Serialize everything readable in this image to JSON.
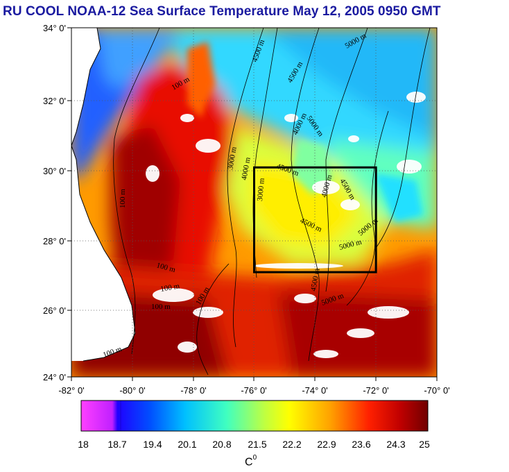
{
  "title": "RU COOL  NOAA-12 Sea Surface Temperature May 12, 2005 0950 GMT",
  "map": {
    "lat_labels": [
      "34° 0'",
      "32° 0'",
      "30° 0'",
      "28° 0'",
      "26° 0'",
      "24° 0'"
    ],
    "lon_labels": [
      "-82° 0'",
      "-80° 0'",
      "-78° 0'",
      "-76° 0'",
      "-74° 0'",
      "-72° 0'",
      "-70° 0'"
    ],
    "lat_range": [
      24,
      34
    ],
    "lon_range": [
      -82,
      -70
    ],
    "study_box": {
      "lon": [
        -76,
        -72
      ],
      "lat": [
        27,
        30
      ]
    },
    "contour_labels": [
      "100 m",
      "100 m",
      "3000 m",
      "4500 m",
      "5000 m",
      "4500 m",
      "4000 m",
      "5000 m",
      "4000 m",
      "3000 m",
      "4500 m",
      "4000 m",
      "4500 m",
      "4500 m",
      "5000 m",
      "5000 m",
      "4500 m",
      "5000 m",
      "100 m",
      "100 m",
      "100 m",
      "100 m",
      "100 m"
    ]
  },
  "colorbar": {
    "unit": "C",
    "unit_sup": "0",
    "ticks": [
      "18",
      "18.7",
      "19.4",
      "20.1",
      "20.8",
      "21.5",
      "22.2",
      "22.9",
      "23.6",
      "24.3",
      "25"
    ],
    "colors": [
      "#ff40ff",
      "#0000ff",
      "#0090ff",
      "#00e0ff",
      "#80ffa0",
      "#ffff00",
      "#ffb000",
      "#ff5000",
      "#e00000",
      "#800000"
    ]
  }
}
